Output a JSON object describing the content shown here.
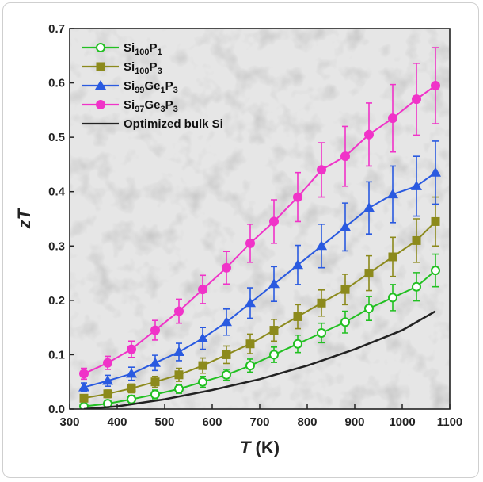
{
  "chart_data": {
    "type": "line",
    "title": "",
    "xlabel": {
      "main": "T",
      "unit": "(K)"
    },
    "ylabel": "zT",
    "xlim": [
      300,
      1100
    ],
    "ylim": [
      0,
      0.7
    ],
    "xticks": [
      "300",
      "400",
      "500",
      "600",
      "700",
      "800",
      "900",
      "1000",
      "1100"
    ],
    "yticks": [
      "0.0",
      "0.1",
      "0.2",
      "0.3",
      "0.4",
      "0.5",
      "0.6",
      "0.7"
    ],
    "legend_position": "top-left",
    "grid": false,
    "background": "grayscale micrograph",
    "series": [
      {
        "name": "Si100P1",
        "label_parts": [
          [
            "Si",
            ""
          ],
          [
            "100",
            "sub"
          ],
          [
            "P",
            ""
          ],
          [
            "1",
            "sub"
          ]
        ],
        "color": "#22c022",
        "marker": "open-circle",
        "x": [
          330,
          380,
          430,
          480,
          530,
          580,
          630,
          680,
          730,
          780,
          830,
          880,
          930,
          980,
          1030,
          1070
        ],
        "y": [
          0.005,
          0.01,
          0.018,
          0.027,
          0.037,
          0.05,
          0.063,
          0.08,
          0.1,
          0.12,
          0.14,
          0.16,
          0.185,
          0.205,
          0.225,
          0.255
        ],
        "err": [
          0.005,
          0.006,
          0.007,
          0.008,
          0.008,
          0.01,
          0.01,
          0.012,
          0.014,
          0.016,
          0.018,
          0.02,
          0.022,
          0.024,
          0.026,
          0.03
        ]
      },
      {
        "name": "Si100P3",
        "label_parts": [
          [
            "Si",
            ""
          ],
          [
            "100",
            "sub"
          ],
          [
            "P",
            ""
          ],
          [
            "3",
            "sub"
          ]
        ],
        "color": "#8c8a1c",
        "marker": "square",
        "x": [
          330,
          380,
          430,
          480,
          530,
          580,
          630,
          680,
          730,
          780,
          830,
          880,
          930,
          980,
          1030,
          1070
        ],
        "y": [
          0.02,
          0.028,
          0.038,
          0.05,
          0.063,
          0.08,
          0.1,
          0.12,
          0.145,
          0.17,
          0.195,
          0.22,
          0.25,
          0.28,
          0.31,
          0.345
        ],
        "err": [
          0.006,
          0.007,
          0.008,
          0.01,
          0.012,
          0.014,
          0.016,
          0.018,
          0.02,
          0.022,
          0.024,
          0.028,
          0.032,
          0.036,
          0.04,
          0.045
        ]
      },
      {
        "name": "Si99Ge1P3",
        "label_parts": [
          [
            "Si",
            ""
          ],
          [
            "99",
            "sub"
          ],
          [
            "Ge",
            ""
          ],
          [
            "1",
            "sub"
          ],
          [
            "P",
            ""
          ],
          [
            "3",
            "sub"
          ]
        ],
        "color": "#2a5ae0",
        "marker": "triangle",
        "x": [
          330,
          380,
          430,
          480,
          530,
          580,
          630,
          680,
          730,
          780,
          830,
          880,
          930,
          980,
          1030,
          1070
        ],
        "y": [
          0.04,
          0.052,
          0.065,
          0.085,
          0.105,
          0.13,
          0.16,
          0.195,
          0.23,
          0.265,
          0.3,
          0.335,
          0.37,
          0.395,
          0.41,
          0.435
        ],
        "err": [
          0.008,
          0.01,
          0.012,
          0.014,
          0.016,
          0.02,
          0.024,
          0.028,
          0.032,
          0.036,
          0.04,
          0.044,
          0.048,
          0.052,
          0.055,
          0.058
        ]
      },
      {
        "name": "Si97Ge3P3",
        "label_parts": [
          [
            "Si",
            ""
          ],
          [
            "97",
            "sub"
          ],
          [
            "Ge",
            ""
          ],
          [
            "3",
            "sub"
          ],
          [
            "P",
            ""
          ],
          [
            "3",
            "sub"
          ]
        ],
        "color": "#f033c8",
        "marker": "circle",
        "x": [
          330,
          380,
          430,
          480,
          530,
          580,
          630,
          680,
          730,
          780,
          830,
          880,
          930,
          980,
          1030,
          1070
        ],
        "y": [
          0.065,
          0.085,
          0.11,
          0.145,
          0.18,
          0.22,
          0.26,
          0.305,
          0.345,
          0.39,
          0.44,
          0.465,
          0.505,
          0.535,
          0.57,
          0.595
        ],
        "err": [
          0.01,
          0.012,
          0.015,
          0.018,
          0.022,
          0.026,
          0.03,
          0.035,
          0.04,
          0.045,
          0.05,
          0.055,
          0.058,
          0.062,
          0.066,
          0.07
        ]
      },
      {
        "name": "Optimized bulk Si",
        "label_parts": [
          [
            "Optimized bulk Si",
            ""
          ]
        ],
        "color": "#222222",
        "marker": "none",
        "x": [
          330,
          400,
          500,
          600,
          700,
          800,
          900,
          1000,
          1070
        ],
        "y": [
          0.0,
          0.005,
          0.018,
          0.035,
          0.055,
          0.08,
          0.11,
          0.145,
          0.18
        ],
        "err": null
      }
    ]
  }
}
